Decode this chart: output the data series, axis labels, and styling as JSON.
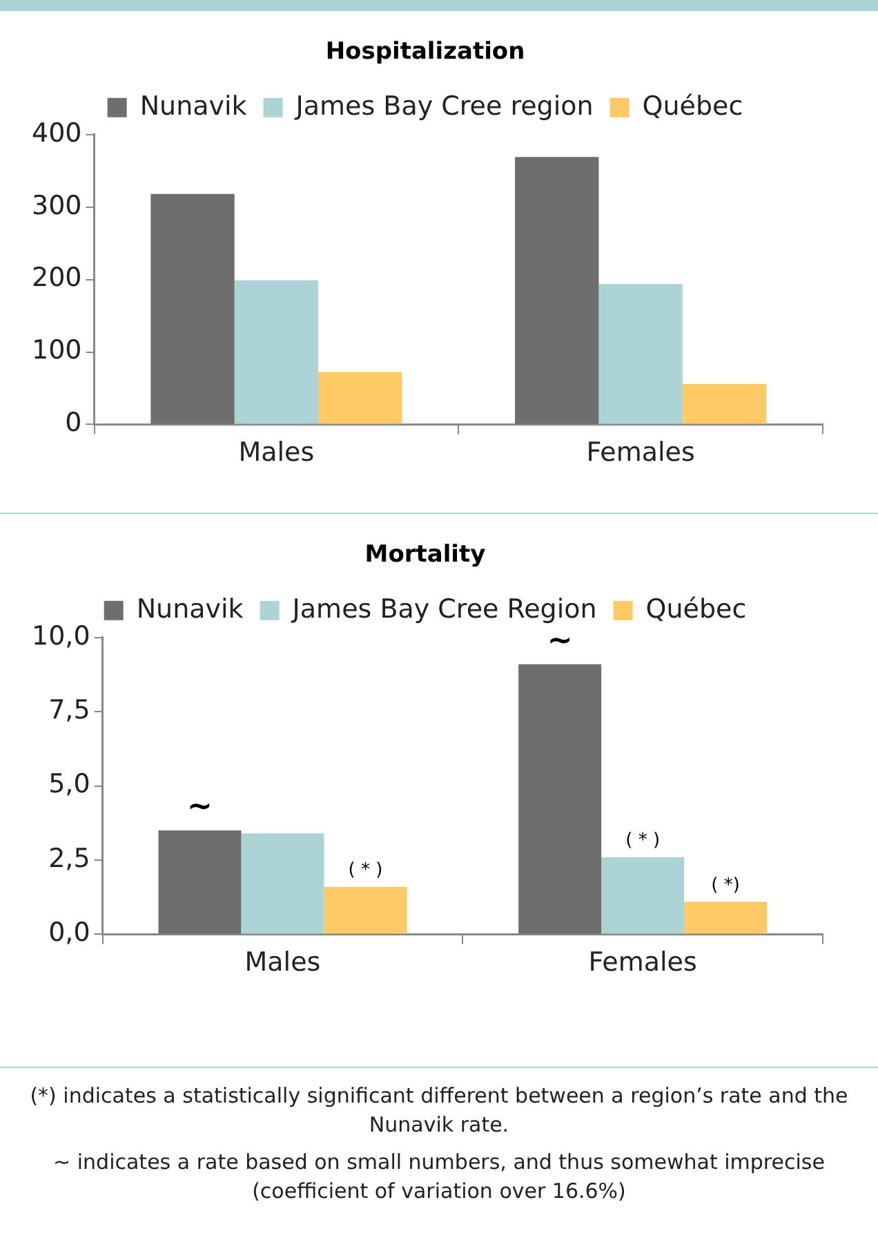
{
  "chart_data": [
    {
      "type": "bar",
      "title": "Hospitalization",
      "categories": [
        "Males",
        "Females"
      ],
      "series": [
        {
          "name": "Nunavik",
          "color": "#6e6e6e",
          "values": [
            318,
            369
          ]
        },
        {
          "name": "James Bay Cree region",
          "color": "#acd3d6",
          "values": [
            199,
            194
          ]
        },
        {
          "name": "Québec",
          "color": "#fdca65",
          "values": [
            72,
            56
          ]
        }
      ],
      "ylim": [
        0,
        400
      ],
      "yticks": [
        0,
        100,
        200,
        300,
        400
      ],
      "grid": false,
      "legend": "top"
    },
    {
      "type": "bar",
      "title": "Mortality",
      "categories": [
        "Males",
        "Females"
      ],
      "series": [
        {
          "name": "Nunavik",
          "color": "#6e6e6e",
          "values": [
            3.5,
            9.1
          ],
          "value_labels": [
            "~",
            "~"
          ]
        },
        {
          "name": "James Bay Cree Region",
          "color": "#acd3d6",
          "values": [
            3.4,
            2.6
          ],
          "value_labels": [
            null,
            "( * )"
          ]
        },
        {
          "name": "Québec",
          "color": "#fdca65",
          "values": [
            1.6,
            1.1
          ],
          "value_labels": [
            "( * )",
            "( *)"
          ]
        }
      ],
      "ylim": [
        0,
        10
      ],
      "yticks": [
        {
          "value": 0,
          "label": "0,0"
        },
        {
          "value": 2.5,
          "label": "2,5"
        },
        {
          "value": 5,
          "label": "5,0"
        },
        {
          "value": 7.5,
          "label": "7,5"
        },
        {
          "value": 10,
          "label": "10,0"
        }
      ],
      "grid": false,
      "legend": "top",
      "annotations": [
        "(*) indicates a statistically significant different between a region’s rate and the Nunavik rate.",
        "~ indicates a rate based on small numbers, and thus somewhat imprecise (coefficient of variation over 16.6%)"
      ]
    }
  ]
}
